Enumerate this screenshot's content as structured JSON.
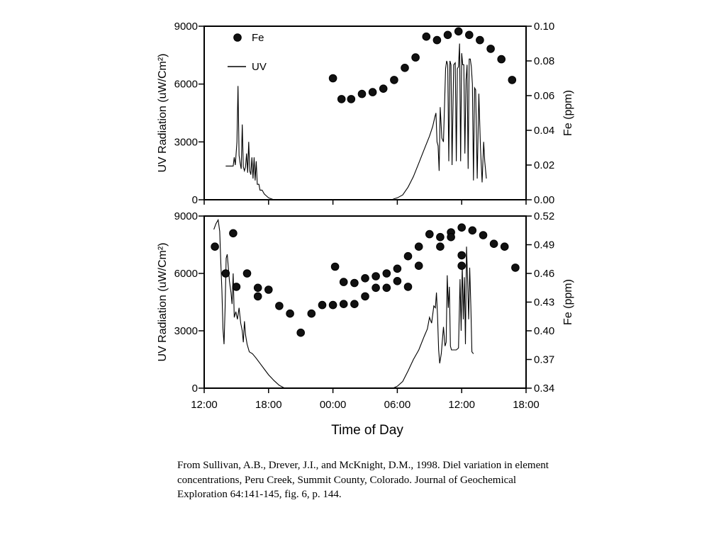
{
  "chart_data": [
    {
      "type": "line",
      "x_unit": "hours since 12:00 on day 1",
      "y_left": {
        "label": "UV Radiation (uW/Cm²)",
        "ylim": [
          0,
          9000
        ],
        "ticks": [
          0,
          3000,
          6000,
          9000
        ]
      },
      "y_right": {
        "label": "Fe (ppm)",
        "ylim": [
          0,
          0.1
        ],
        "ticks": [
          "0.00",
          "0.02",
          "0.04",
          "0.06",
          "0.08",
          "0.10"
        ]
      },
      "legend": [
        "Fe",
        "UV"
      ],
      "legend_position": "top-left",
      "series": [
        {
          "name": "UV",
          "kind": "line",
          "axis": "left",
          "points": [
            [
              2.0,
              1750
            ],
            [
              2.7,
              1750
            ],
            [
              2.8,
              2200
            ],
            [
              2.9,
              1800
            ],
            [
              3.05,
              3000
            ],
            [
              3.15,
              5900
            ],
            [
              3.25,
              2300
            ],
            [
              3.35,
              1900
            ],
            [
              3.45,
              1600
            ],
            [
              3.55,
              3900
            ],
            [
              3.65,
              1700
            ],
            [
              3.75,
              1500
            ],
            [
              3.85,
              1700
            ],
            [
              3.95,
              2400
            ],
            [
              4.05,
              1400
            ],
            [
              4.15,
              3000
            ],
            [
              4.25,
              1500
            ],
            [
              4.35,
              1300
            ],
            [
              4.45,
              2200
            ],
            [
              4.55,
              1100
            ],
            [
              4.65,
              2200
            ],
            [
              4.75,
              1000
            ],
            [
              4.85,
              2000
            ],
            [
              4.95,
              800
            ],
            [
              5.1,
              800
            ],
            [
              5.2,
              500
            ],
            [
              5.4,
              500
            ],
            [
              5.6,
              300
            ],
            [
              5.8,
              200
            ],
            [
              6.0,
              100
            ],
            [
              6.5,
              0
            ],
            [
              17.5,
              0
            ],
            [
              17.7,
              50
            ],
            [
              18.0,
              100
            ],
            [
              18.5,
              250
            ],
            [
              19.0,
              650
            ],
            [
              19.5,
              1200
            ],
            [
              20.0,
              1900
            ],
            [
              20.5,
              2600
            ],
            [
              21.0,
              3300
            ],
            [
              21.3,
              3800
            ],
            [
              21.5,
              4300
            ],
            [
              21.6,
              4500
            ],
            [
              21.7,
              3000
            ],
            [
              21.8,
              2800
            ],
            [
              21.9,
              1500
            ],
            [
              22.0,
              4800
            ],
            [
              22.15,
              3200
            ],
            [
              22.3,
              3000
            ],
            [
              22.5,
              6800
            ],
            [
              22.6,
              7200
            ],
            [
              22.7,
              7000
            ],
            [
              22.8,
              2000
            ],
            [
              22.9,
              7200
            ],
            [
              23.0,
              7000
            ],
            [
              23.1,
              1800
            ],
            [
              23.25,
              7000
            ],
            [
              23.4,
              7100
            ],
            [
              23.5,
              2000
            ],
            [
              23.6,
              6800
            ],
            [
              23.7,
              6900
            ],
            [
              23.8,
              8100
            ],
            [
              23.9,
              2000
            ],
            [
              24.0,
              7600
            ],
            [
              24.1,
              7000
            ],
            [
              24.2,
              7000
            ],
            [
              24.3,
              2400
            ],
            [
              24.4,
              6200
            ],
            [
              24.5,
              7000
            ],
            [
              24.6,
              1600
            ],
            [
              24.7,
              7300
            ],
            [
              24.8,
              7300
            ],
            [
              24.9,
              6900
            ],
            [
              25.0,
              6000
            ],
            [
              25.1,
              1000
            ],
            [
              25.2,
              5800
            ],
            [
              25.3,
              5700
            ],
            [
              25.45,
              1100
            ],
            [
              25.6,
              5500
            ],
            [
              25.75,
              2700
            ],
            [
              25.9,
              900
            ],
            [
              26.05,
              3000
            ],
            [
              26.15,
              2000
            ],
            [
              26.3,
              1100
            ]
          ]
        },
        {
          "name": "Fe",
          "kind": "scatter",
          "axis": "right",
          "points": [
            [
              12.0,
              0.07
            ],
            [
              12.8,
              0.058
            ],
            [
              13.7,
              0.058
            ],
            [
              14.7,
              0.061
            ],
            [
              15.7,
              0.062
            ],
            [
              16.7,
              0.064
            ],
            [
              17.7,
              0.069
            ],
            [
              18.7,
              0.076
            ],
            [
              19.7,
              0.082
            ],
            [
              20.7,
              0.094
            ],
            [
              21.7,
              0.092
            ],
            [
              22.7,
              0.095
            ],
            [
              23.7,
              0.097
            ],
            [
              24.7,
              0.095
            ],
            [
              25.7,
              0.092
            ],
            [
              26.7,
              0.087
            ],
            [
              27.7,
              0.081
            ],
            [
              28.7,
              0.069
            ]
          ]
        }
      ]
    },
    {
      "type": "line",
      "x_unit": "hours since 12:00 on day 1",
      "y_left": {
        "label": "UV Radiation (uW/Cm²)",
        "ylim": [
          0,
          9000
        ],
        "ticks": [
          0,
          3000,
          6000,
          9000
        ]
      },
      "y_right": {
        "label": "Fe (ppm)",
        "ylim": [
          0.34,
          0.52
        ],
        "ticks": [
          "0.34",
          "0.37",
          "0.40",
          "0.43",
          "0.46",
          "0.49",
          "0.52"
        ]
      },
      "x_axis": {
        "label": "Time of Day",
        "xlim": [
          0,
          30
        ],
        "ticks": [
          "12:00",
          "18:00",
          "00:00",
          "06:00",
          "12:00",
          "18:00"
        ]
      },
      "series": [
        {
          "name": "UV",
          "kind": "line",
          "axis": "left",
          "points": [
            [
              0.9,
              8300
            ],
            [
              1.1,
              8600
            ],
            [
              1.3,
              8800
            ],
            [
              1.45,
              8200
            ],
            [
              1.55,
              6500
            ],
            [
              1.65,
              5100
            ],
            [
              1.75,
              3100
            ],
            [
              1.85,
              2300
            ],
            [
              1.95,
              4200
            ],
            [
              2.05,
              6800
            ],
            [
              2.15,
              7000
            ],
            [
              2.25,
              6300
            ],
            [
              2.35,
              5600
            ],
            [
              2.5,
              5000
            ],
            [
              2.6,
              4400
            ],
            [
              2.7,
              6000
            ],
            [
              2.8,
              3700
            ],
            [
              2.95,
              4000
            ],
            [
              3.1,
              3600
            ],
            [
              3.25,
              4200
            ],
            [
              3.4,
              3400
            ],
            [
              3.55,
              3000
            ],
            [
              3.65,
              2400
            ],
            [
              3.75,
              3500
            ],
            [
              3.85,
              2800
            ],
            [
              4.0,
              2300
            ],
            [
              4.2,
              1900
            ],
            [
              4.5,
              1800
            ],
            [
              4.8,
              1600
            ],
            [
              5.2,
              1300
            ],
            [
              5.6,
              1000
            ],
            [
              6.0,
              700
            ],
            [
              6.5,
              400
            ],
            [
              7.0,
              150
            ],
            [
              7.5,
              0
            ],
            [
              17.6,
              0
            ],
            [
              18.0,
              100
            ],
            [
              18.5,
              350
            ],
            [
              19.0,
              900
            ],
            [
              19.5,
              1500
            ],
            [
              20.0,
              2000
            ],
            [
              20.5,
              2700
            ],
            [
              20.8,
              3100
            ],
            [
              21.0,
              3700
            ],
            [
              21.2,
              3400
            ],
            [
              21.4,
              4300
            ],
            [
              21.55,
              4200
            ],
            [
              21.65,
              5000
            ],
            [
              21.75,
              3800
            ],
            [
              21.85,
              2000
            ],
            [
              21.95,
              1300
            ],
            [
              22.1,
              1800
            ],
            [
              22.3,
              3200
            ],
            [
              22.45,
              2200
            ],
            [
              22.55,
              2400
            ],
            [
              22.65,
              5900
            ],
            [
              22.75,
              4200
            ],
            [
              22.85,
              5300
            ],
            [
              22.95,
              2200
            ],
            [
              23.05,
              2000
            ],
            [
              23.2,
              2000
            ],
            [
              23.5,
              2000
            ],
            [
              23.7,
              2100
            ],
            [
              23.85,
              5700
            ],
            [
              23.95,
              3000
            ],
            [
              24.05,
              6400
            ],
            [
              24.15,
              3600
            ],
            [
              24.25,
              5800
            ],
            [
              24.35,
              2300
            ],
            [
              24.45,
              7400
            ],
            [
              24.55,
              5700
            ],
            [
              24.65,
              3600
            ],
            [
              24.75,
              6300
            ],
            [
              24.85,
              4300
            ],
            [
              24.95,
              1900
            ],
            [
              25.1,
              1800
            ]
          ]
        },
        {
          "name": "Fe",
          "kind": "scatter",
          "axis": "right",
          "points": [
            [
              1.0,
              0.488
            ],
            [
              2.0,
              0.46
            ],
            [
              2.7,
              0.502
            ],
            [
              3.0,
              0.446
            ],
            [
              4.0,
              0.46
            ],
            [
              5.0,
              0.445
            ],
            [
              5.0,
              0.436
            ],
            [
              6.0,
              0.443
            ],
            [
              7.0,
              0.426
            ],
            [
              8.0,
              0.418
            ],
            [
              9.0,
              0.398
            ],
            [
              10.0,
              0.418
            ],
            [
              11.0,
              0.427
            ],
            [
              12.0,
              0.427
            ],
            [
              12.2,
              0.467
            ],
            [
              13.0,
              0.428
            ],
            [
              13.0,
              0.451
            ],
            [
              14.0,
              0.428
            ],
            [
              14.0,
              0.45
            ],
            [
              15.0,
              0.436
            ],
            [
              15.0,
              0.455
            ],
            [
              16.0,
              0.445
            ],
            [
              16.0,
              0.457
            ],
            [
              17.0,
              0.445
            ],
            [
              17.0,
              0.46
            ],
            [
              18.0,
              0.465
            ],
            [
              18.0,
              0.452
            ],
            [
              19.0,
              0.446
            ],
            [
              19.0,
              0.478
            ],
            [
              20.0,
              0.488
            ],
            [
              20.0,
              0.468
            ],
            [
              21.0,
              0.501
            ],
            [
              22.0,
              0.498
            ],
            [
              22.0,
              0.488
            ],
            [
              23.0,
              0.503
            ],
            [
              23.0,
              0.498
            ],
            [
              24.0,
              0.508
            ],
            [
              24.0,
              0.479
            ],
            [
              24.0,
              0.468
            ],
            [
              25.0,
              0.505
            ],
            [
              26.0,
              0.5
            ],
            [
              27.0,
              0.491
            ],
            [
              28.0,
              0.488
            ],
            [
              29.0,
              0.466
            ]
          ]
        }
      ]
    }
  ],
  "caption": {
    "text": "From Sullivan, A.B., Drever, J.I., and McKnight, D.M., 1998. Diel variation in element concentrations, Peru Creek, Summit County, Colorado. Journal of Geochemical Exploration 64:141-145, fig. 6, p. 144."
  }
}
